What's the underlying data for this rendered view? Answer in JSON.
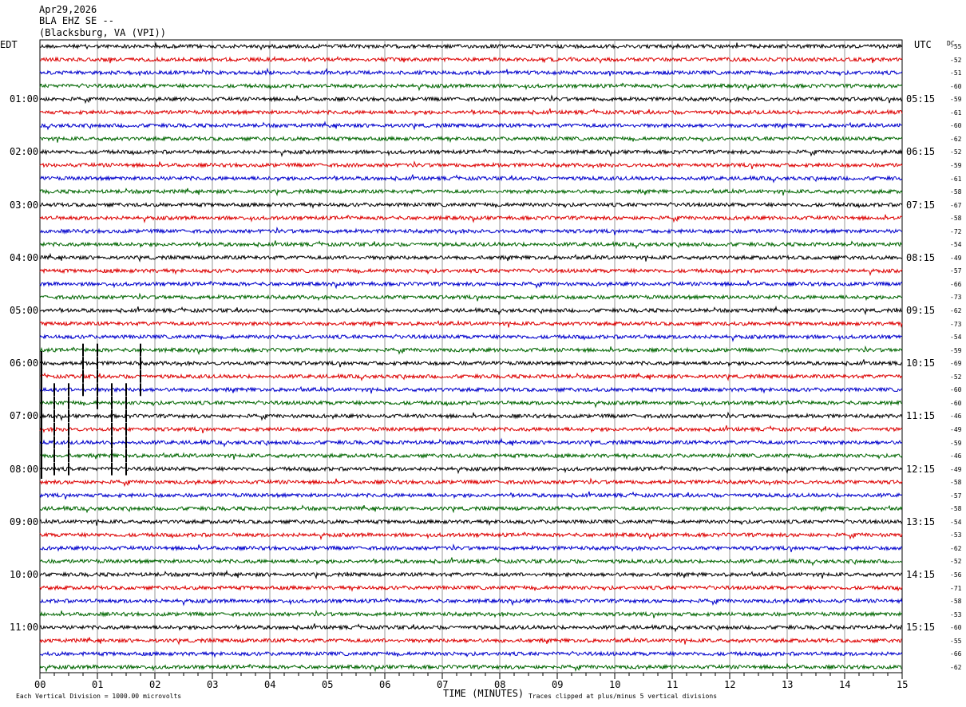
{
  "header": {
    "date": "Apr29,2026",
    "station": "BLA EHZ SE --",
    "location": "(Blacksburg, VA (VPI))"
  },
  "labels": {
    "left_tz": "EDT",
    "right_tz": "UTC",
    "dc_label": "DC",
    "xlabel": "TIME (MINUTES)",
    "scale_note": "Each Vertical Division = 1000.00 microvolts",
    "clip_note": "Traces clipped at plus/minus 5 vertical divisions"
  },
  "chart_data": {
    "type": "line",
    "xlim": [
      0,
      15
    ],
    "x_ticks": [
      "00",
      "01",
      "02",
      "03",
      "04",
      "05",
      "06",
      "07",
      "08",
      "09",
      "10",
      "11",
      "12",
      "13",
      "14",
      "15"
    ],
    "trace_colors": [
      "#000000",
      "#dd0000",
      "#0000cc",
      "#006600"
    ],
    "left_hour_labels": [
      "01:00",
      "02:00",
      "03:00",
      "04:00",
      "05:00",
      "06:00",
      "07:00",
      "08:00",
      "09:00",
      "10:00",
      "11:00"
    ],
    "right_hour_labels": [
      "05:15",
      "06:15",
      "07:15",
      "08:15",
      "09:15",
      "10:15",
      "11:15",
      "12:15",
      "13:15",
      "14:15",
      "15:15"
    ],
    "dc_offsets": [
      "-55",
      "-52",
      "-51",
      "-60",
      "-59",
      "-61",
      "-60",
      "-62",
      "-52",
      "-59",
      "-61",
      "-58",
      "-67",
      "-58",
      "-72",
      "-54",
      "-49",
      "-57",
      "-66",
      "-73",
      "-62",
      "-73",
      "-54",
      "-59",
      "-69",
      "-52",
      "-60",
      "-60",
      "-46",
      "-49",
      "-59",
      "-46",
      "-49",
      "-58",
      "-57",
      "-58",
      "-54",
      "-53",
      "-62",
      "-52",
      "-56",
      "-71",
      "-58",
      "-53",
      "-60",
      "-55",
      "-66",
      "-62"
    ],
    "spikes_minutes": [
      0.25,
      0.5,
      0.75,
      1.0,
      1.25,
      1.5,
      1.75
    ]
  }
}
